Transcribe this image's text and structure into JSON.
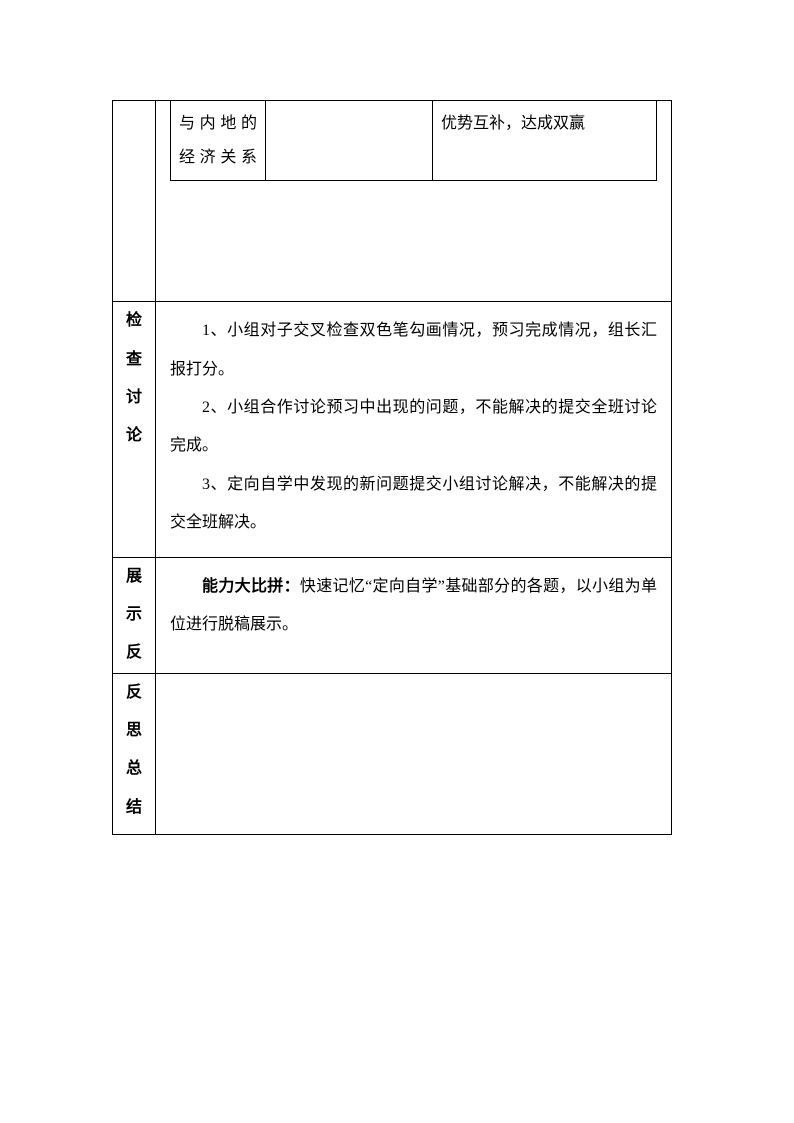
{
  "row1": {
    "inner": {
      "c1": "与内地的经济关系",
      "c2": "",
      "c3": "优势互补，达成双赢"
    }
  },
  "row2": {
    "label_chars": [
      "检",
      "查",
      "讨",
      "论"
    ],
    "p1": "1、小组对子交叉检查双色笔勾画情况，预习完成情况，组长汇报打分。",
    "p2": "2、小组合作讨论预习中出现的问题，不能解决的提交全班讨论完成。",
    "p3": "3、定向自学中发现的新问题提交小组讨论解决，不能解决的提交全班解决。"
  },
  "row3": {
    "label_chars": [
      "展",
      "示",
      "反"
    ],
    "bold_lead": "能力大比拼：",
    "rest": "快速记忆“定向自学”基础部分的各题，以小组为单位进行脱稿展示。"
  },
  "row4": {
    "label_chars": [
      "反",
      "思",
      "总",
      "结"
    ]
  },
  "colors": {
    "border": "#000000",
    "background": "#ffffff",
    "text": "#000000"
  },
  "fontsize_pt": 12,
  "line_height": 2.4
}
